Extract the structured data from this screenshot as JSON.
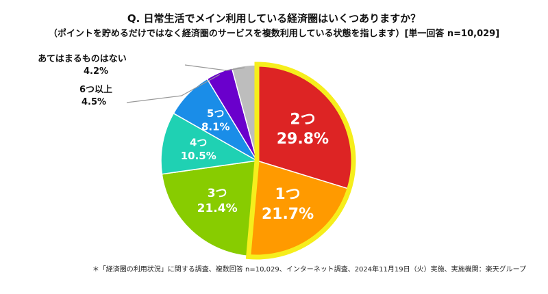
{
  "title": {
    "line1": "Q. 日常生活でメイン利用している経済圏はいくつありますか？",
    "line2": "（ポイントを貯めるだけではなく経済圏のサービスを複数利用している状態を指します）[単一回答 n=10,029]"
  },
  "footnote": "＊「経済圏の利用状況」に関する調査、複数回答 n=10,029、インターネット調査、2024年11月19日（火）実施、実施機関：楽天グループ",
  "chart_data": {
    "type": "pie",
    "start": "12 o'clock, clockwise",
    "highlight_series": [
      "2つ",
      "1つ"
    ],
    "highlight_color": "#f6ee1c",
    "slices": [
      {
        "label": "2つ",
        "percent_label": "29.8%",
        "value": 29.8,
        "color": "#dd2424",
        "label_pos": "inside"
      },
      {
        "label": "1つ",
        "percent_label": "21.7%",
        "value": 21.7,
        "color": "#ff9a00",
        "label_pos": "inside"
      },
      {
        "label": "3つ",
        "percent_label": "21.4%",
        "value": 21.4,
        "color": "#88cc00",
        "label_pos": "inside"
      },
      {
        "label": "4つ",
        "percent_label": "10.5%",
        "value": 10.5,
        "color": "#1fd1b3",
        "label_pos": "inside"
      },
      {
        "label": "5つ",
        "percent_label": "8.1%",
        "value": 8.1,
        "color": "#1a8de8",
        "label_pos": "inside"
      },
      {
        "label": "6つ以上",
        "percent_label": "4.5%",
        "value": 4.5,
        "color": "#6a00cc",
        "label_pos": "outside"
      },
      {
        "label": "あてはまるものはない",
        "percent_label": "4.2%",
        "value": 4.2,
        "color": "#bdbdbd",
        "label_pos": "outside"
      }
    ]
  }
}
